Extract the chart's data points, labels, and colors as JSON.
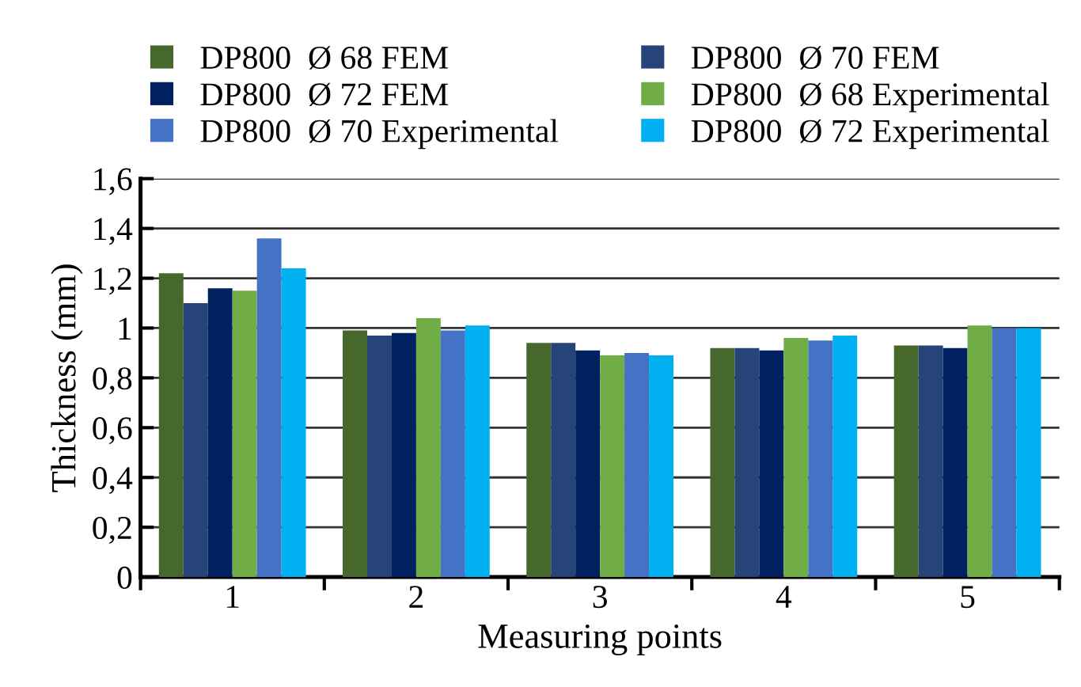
{
  "chart_data": {
    "type": "bar",
    "xlabel": "Measuring points",
    "ylabel": "Thickness (mm)",
    "categories": [
      "1",
      "2",
      "3",
      "4",
      "5"
    ],
    "series": [
      {
        "name": "DP800  Ø 68 FEM",
        "color": "#47682c",
        "values": [
          1.22,
          0.99,
          0.94,
          0.92,
          0.93
        ]
      },
      {
        "name": "DP800  Ø 70 FEM",
        "color": "#264478",
        "values": [
          1.1,
          0.97,
          0.94,
          0.92,
          0.93
        ]
      },
      {
        "name": "DP800  Ø 72 FEM",
        "color": "#002060",
        "values": [
          1.16,
          0.98,
          0.91,
          0.91,
          0.92
        ]
      },
      {
        "name": "DP800  Ø 68 Experimental",
        "color": "#70ad47",
        "values": [
          1.15,
          1.04,
          0.89,
          0.96,
          1.01
        ]
      },
      {
        "name": "DP800  Ø 70 Experimental",
        "color": "#4472c4",
        "values": [
          1.36,
          0.99,
          0.9,
          0.95,
          1.0
        ]
      },
      {
        "name": "DP800  Ø 72 Experimental",
        "color": "#00b0f0",
        "values": [
          1.24,
          1.01,
          0.89,
          0.97,
          1.0
        ]
      }
    ],
    "ylim": [
      0,
      1.6
    ],
    "yticks": [
      {
        "value": 0,
        "label": "0"
      },
      {
        "value": 0.2,
        "label": "0,2"
      },
      {
        "value": 0.4,
        "label": "0,4"
      },
      {
        "value": 0.6,
        "label": "0,6"
      },
      {
        "value": 0.8,
        "label": "0,8"
      },
      {
        "value": 1,
        "label": "1"
      },
      {
        "value": 1.2,
        "label": "1,2"
      },
      {
        "value": 1.4,
        "label": "1,4"
      },
      {
        "value": 1.6,
        "label": "1,6"
      }
    ],
    "grid": "y",
    "legend": "top"
  }
}
